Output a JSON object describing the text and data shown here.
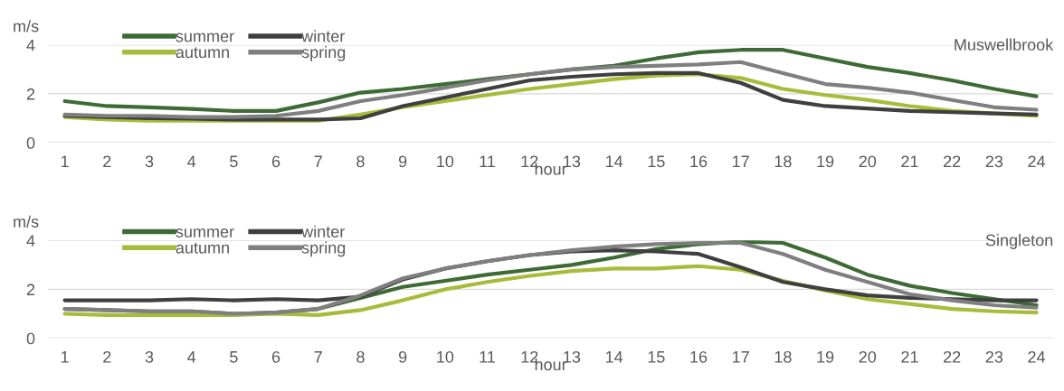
{
  "chart_data": [
    {
      "type": "line",
      "title": "Muswellbrook",
      "xlabel": "hour",
      "ylabel": "m/s",
      "categories": [
        "1",
        "2",
        "3",
        "4",
        "5",
        "6",
        "7",
        "8",
        "9",
        "10",
        "11",
        "12",
        "13",
        "14",
        "15",
        "16",
        "17",
        "18",
        "19",
        "20",
        "21",
        "22",
        "23",
        "24"
      ],
      "ylim": [
        0,
        4
      ],
      "yticks": [
        0,
        2,
        4
      ],
      "grid": "y",
      "legend": "top left",
      "marker": "none",
      "line_style": "solid",
      "series": [
        {
          "name": "summer",
          "color": "#3e6b35",
          "values": [
            1.7,
            1.5,
            1.45,
            1.38,
            1.3,
            1.3,
            1.65,
            2.05,
            2.2,
            2.4,
            2.6,
            2.8,
            3.0,
            3.15,
            3.45,
            3.7,
            3.8,
            3.8,
            3.45,
            3.1,
            2.85,
            2.55,
            2.2,
            1.9
          ]
        },
        {
          "name": "autumn",
          "color": "#a9bb3a",
          "values": [
            1.05,
            0.95,
            0.9,
            0.9,
            0.9,
            0.9,
            0.9,
            1.15,
            1.45,
            1.7,
            1.95,
            2.2,
            2.4,
            2.6,
            2.75,
            2.8,
            2.65,
            2.2,
            1.95,
            1.75,
            1.5,
            1.3,
            1.2,
            1.1
          ]
        },
        {
          "name": "winter",
          "color": "#3f3f3f",
          "values": [
            1.1,
            1.05,
            1.0,
            0.98,
            0.95,
            0.95,
            0.95,
            1.0,
            1.5,
            1.85,
            2.2,
            2.55,
            2.7,
            2.8,
            2.85,
            2.85,
            2.45,
            1.75,
            1.5,
            1.4,
            1.3,
            1.25,
            1.2,
            1.15
          ]
        },
        {
          "name": "spring",
          "color": "#7f7f7f",
          "values": [
            1.15,
            1.1,
            1.1,
            1.05,
            1.05,
            1.1,
            1.3,
            1.7,
            1.95,
            2.25,
            2.55,
            2.8,
            3.0,
            3.1,
            3.15,
            3.2,
            3.3,
            2.85,
            2.4,
            2.25,
            2.05,
            1.75,
            1.45,
            1.35
          ]
        }
      ]
    },
    {
      "type": "line",
      "title": "Singleton",
      "xlabel": "hour",
      "ylabel": "m/s",
      "categories": [
        "1",
        "2",
        "3",
        "4",
        "5",
        "6",
        "7",
        "8",
        "9",
        "10",
        "11",
        "12",
        "13",
        "14",
        "15",
        "16",
        "17",
        "18",
        "19",
        "20",
        "21",
        "22",
        "23",
        "24"
      ],
      "ylim": [
        0,
        4
      ],
      "yticks": [
        0,
        2,
        4
      ],
      "grid": "y",
      "legend": "top left",
      "marker": "none",
      "line_style": "solid",
      "series": [
        {
          "name": "summer",
          "color": "#3e6b35",
          "values": [
            1.2,
            1.15,
            1.1,
            1.1,
            1.0,
            1.05,
            1.2,
            1.65,
            2.1,
            2.35,
            2.6,
            2.8,
            3.0,
            3.3,
            3.65,
            3.85,
            3.95,
            3.9,
            3.3,
            2.6,
            2.15,
            1.85,
            1.6,
            1.35
          ]
        },
        {
          "name": "autumn",
          "color": "#a9bb3a",
          "values": [
            1.0,
            0.95,
            0.95,
            0.95,
            0.95,
            1.0,
            0.95,
            1.15,
            1.55,
            2.0,
            2.3,
            2.55,
            2.75,
            2.85,
            2.85,
            2.95,
            2.8,
            2.35,
            1.95,
            1.6,
            1.4,
            1.2,
            1.1,
            1.05
          ]
        },
        {
          "name": "winter",
          "color": "#3f3f3f",
          "values": [
            1.55,
            1.55,
            1.55,
            1.6,
            1.55,
            1.6,
            1.55,
            1.7,
            2.4,
            2.85,
            3.15,
            3.4,
            3.55,
            3.6,
            3.55,
            3.45,
            2.9,
            2.3,
            2.0,
            1.75,
            1.65,
            1.6,
            1.55,
            1.55
          ]
        },
        {
          "name": "spring",
          "color": "#7f7f7f",
          "values": [
            1.2,
            1.15,
            1.1,
            1.1,
            1.0,
            1.05,
            1.2,
            1.75,
            2.45,
            2.85,
            3.15,
            3.4,
            3.6,
            3.75,
            3.85,
            3.9,
            3.9,
            3.45,
            2.8,
            2.3,
            1.8,
            1.55,
            1.35,
            1.25
          ]
        }
      ]
    }
  ]
}
